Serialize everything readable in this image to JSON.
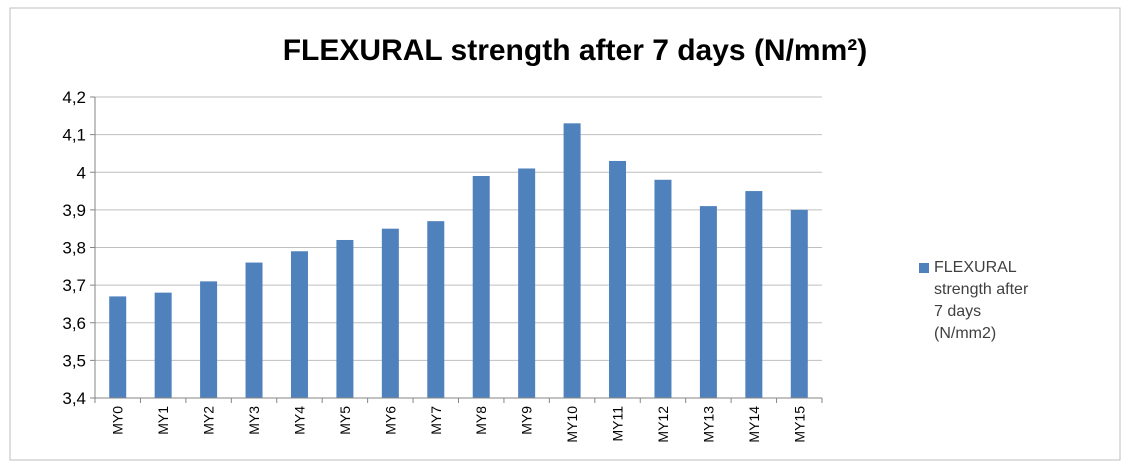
{
  "chart_data": {
    "type": "bar",
    "title": "FLEXURAL  strength after 7 days (N/mm²)",
    "xlabel": "",
    "ylabel": "",
    "categories": [
      "MY0",
      "MY1",
      "MY2",
      "MY3",
      "MY4",
      "MY5",
      "MY6",
      "MY7",
      "MY8",
      "MY9",
      "MY10",
      "MY11",
      "MY12",
      "MY13",
      "MY14",
      "MY15"
    ],
    "series": [
      {
        "name": "FLEXURAL strength after 7 days (N/mm2)",
        "legend_lines": [
          "FLEXURAL",
          "strength after",
          "7 days",
          "(N/mm2)"
        ],
        "color": "#4f81bd",
        "values": [
          3.67,
          3.68,
          3.71,
          3.76,
          3.79,
          3.82,
          3.85,
          3.87,
          3.99,
          4.01,
          4.13,
          4.03,
          3.98,
          3.91,
          3.95,
          3.9
        ]
      }
    ],
    "ylim": [
      3.4,
      4.2
    ],
    "yticks": [
      3.4,
      3.5,
      3.6,
      3.7,
      3.8,
      3.9,
      4.0,
      4.1,
      4.2
    ],
    "ytick_labels": [
      "3,4",
      "3,5",
      "3,6",
      "3,7",
      "3,8",
      "3,9",
      "4",
      "4,1",
      "4,2"
    ],
    "grid": true,
    "legend_position": "right"
  }
}
